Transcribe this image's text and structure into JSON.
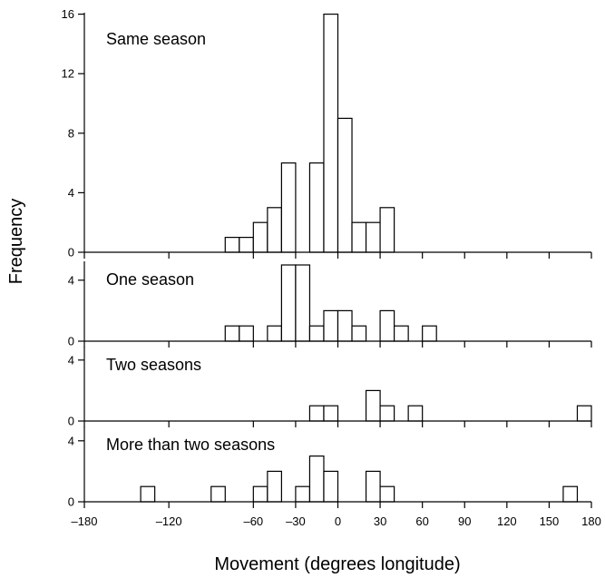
{
  "chart_data": {
    "type": "bar",
    "xlabel": "Movement (degrees longitude)",
    "ylabel": "Frequency",
    "xlim": [
      -180,
      180
    ],
    "bin_width": 10,
    "x_ticks": [
      -180,
      -120,
      -60,
      -30,
      0,
      30,
      60,
      90,
      120,
      150,
      180
    ],
    "x_tick_labels": [
      "–180",
      "–120",
      "–60",
      "–30",
      "0",
      "30",
      "60",
      "90",
      "120",
      "150",
      "180"
    ],
    "panels": [
      {
        "title": "Same season",
        "ylim": [
          0,
          16
        ],
        "y_ticks": [
          0,
          4,
          8,
          12,
          16
        ],
        "bins": [
          {
            "x": -75,
            "count": 1
          },
          {
            "x": -65,
            "count": 1
          },
          {
            "x": -55,
            "count": 2
          },
          {
            "x": -45,
            "count": 3
          },
          {
            "x": -35,
            "count": 6
          },
          {
            "x": -15,
            "count": 6
          },
          {
            "x": -5,
            "count": 16
          },
          {
            "x": 5,
            "count": 9
          },
          {
            "x": 15,
            "count": 2
          },
          {
            "x": 25,
            "count": 2
          },
          {
            "x": 35,
            "count": 3
          }
        ]
      },
      {
        "title": "One season",
        "ylim": [
          0,
          5
        ],
        "y_ticks": [
          0,
          4
        ],
        "bins": [
          {
            "x": -75,
            "count": 1
          },
          {
            "x": -65,
            "count": 1
          },
          {
            "x": -45,
            "count": 1
          },
          {
            "x": -35,
            "count": 5
          },
          {
            "x": -25,
            "count": 5
          },
          {
            "x": -15,
            "count": 1
          },
          {
            "x": -5,
            "count": 2
          },
          {
            "x": 5,
            "count": 2
          },
          {
            "x": 15,
            "count": 1
          },
          {
            "x": 35,
            "count": 2
          },
          {
            "x": 45,
            "count": 1
          },
          {
            "x": 65,
            "count": 1
          }
        ]
      },
      {
        "title": "Two seasons",
        "ylim": [
          0,
          5
        ],
        "y_ticks": [
          0,
          4
        ],
        "bins": [
          {
            "x": -15,
            "count": 1
          },
          {
            "x": -5,
            "count": 1
          },
          {
            "x": 25,
            "count": 2
          },
          {
            "x": 35,
            "count": 1
          },
          {
            "x": 55,
            "count": 1
          },
          {
            "x": 175,
            "count": 1
          }
        ]
      },
      {
        "title": "More than two seasons",
        "ylim": [
          0,
          5
        ],
        "y_ticks": [
          0,
          4
        ],
        "bins": [
          {
            "x": -135,
            "count": 1
          },
          {
            "x": -85,
            "count": 1
          },
          {
            "x": -55,
            "count": 1
          },
          {
            "x": -45,
            "count": 2
          },
          {
            "x": -25,
            "count": 1
          },
          {
            "x": -15,
            "count": 3
          },
          {
            "x": -5,
            "count": 2
          },
          {
            "x": 25,
            "count": 2
          },
          {
            "x": 35,
            "count": 1
          },
          {
            "x": 165,
            "count": 1
          }
        ]
      }
    ]
  }
}
